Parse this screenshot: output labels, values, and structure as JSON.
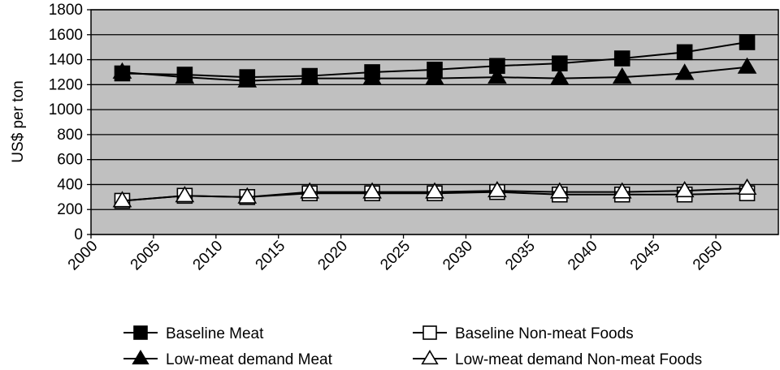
{
  "chart_data": {
    "type": "line",
    "ylabel": "US$ per ton",
    "xlabel": "",
    "x_ticks": [
      "2000",
      "2005",
      "2010",
      "2015",
      "2020",
      "2025",
      "2030",
      "2035",
      "2040",
      "2045",
      "2050"
    ],
    "y_ticks": [
      "0",
      "200",
      "400",
      "600",
      "800",
      "1000",
      "1200",
      "1400",
      "1600",
      "1800"
    ],
    "xlim": [
      2000,
      2055
    ],
    "ylim": [
      0,
      1800
    ],
    "x": [
      2002.5,
      2007.5,
      2012.5,
      2017.5,
      2022.5,
      2027.5,
      2032.5,
      2037.5,
      2042.5,
      2047.5,
      2052.5
    ],
    "grid": "horizontal",
    "legend_position": "bottom",
    "series": [
      {
        "name": "Baseline Meat",
        "marker": "square-filled",
        "values": [
          1290,
          1280,
          1260,
          1270,
          1300,
          1320,
          1350,
          1370,
          1410,
          1460,
          1540
        ]
      },
      {
        "name": "Baseline Non-meat Foods",
        "marker": "square-open",
        "values": [
          270,
          310,
          300,
          330,
          330,
          330,
          340,
          320,
          320,
          320,
          330
        ]
      },
      {
        "name": "Low-meat demand Meat",
        "marker": "triangle-filled",
        "values": [
          1300,
          1260,
          1230,
          1250,
          1250,
          1250,
          1260,
          1250,
          1260,
          1290,
          1340
        ]
      },
      {
        "name": "Low-meat demand Non-meat Foods",
        "marker": "triangle-open",
        "values": [
          270,
          310,
          300,
          340,
          340,
          340,
          350,
          340,
          340,
          350,
          370
        ]
      }
    ],
    "colors": {
      "plot_background": "#c0c0c0",
      "line": "#000000",
      "grid": "#000000"
    }
  }
}
